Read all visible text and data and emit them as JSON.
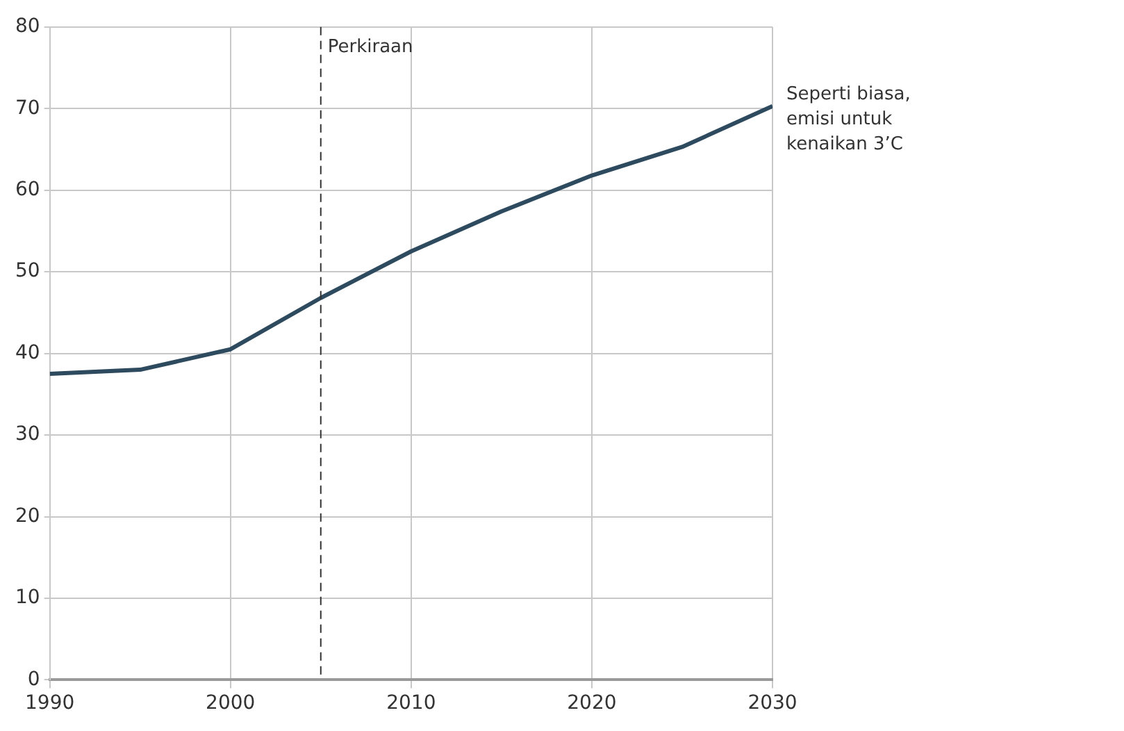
{
  "chart_data": {
    "type": "line",
    "x": [
      1990,
      1995,
      2000,
      2005,
      2010,
      2015,
      2020,
      2025,
      2030
    ],
    "series": [
      {
        "color": "#2e4a5e",
        "values": [
          37.5,
          38,
          40.5,
          46.8,
          52.5,
          57.4,
          61.8,
          65.3,
          70.3
        ]
      }
    ],
    "xlim": [
      1990,
      2030
    ],
    "xticks": [
      1990,
      2000,
      2010,
      2020,
      2030
    ],
    "ylim": [
      0,
      80
    ],
    "yticks": [
      0,
      10,
      20,
      30,
      40,
      50,
      60,
      70,
      80
    ],
    "grid": true,
    "legend": false,
    "marker": "none",
    "line_style": "solid",
    "ref_lines": [
      {
        "axis": "x",
        "value": 2005,
        "label": "Perkiraan",
        "line_style": "dashed",
        "color": "#333333"
      }
    ],
    "annotations": [
      {
        "text": "Seperti biasa, emisi untuk kenaikan 3’C",
        "x": 2030,
        "y": 70.3
      }
    ]
  }
}
